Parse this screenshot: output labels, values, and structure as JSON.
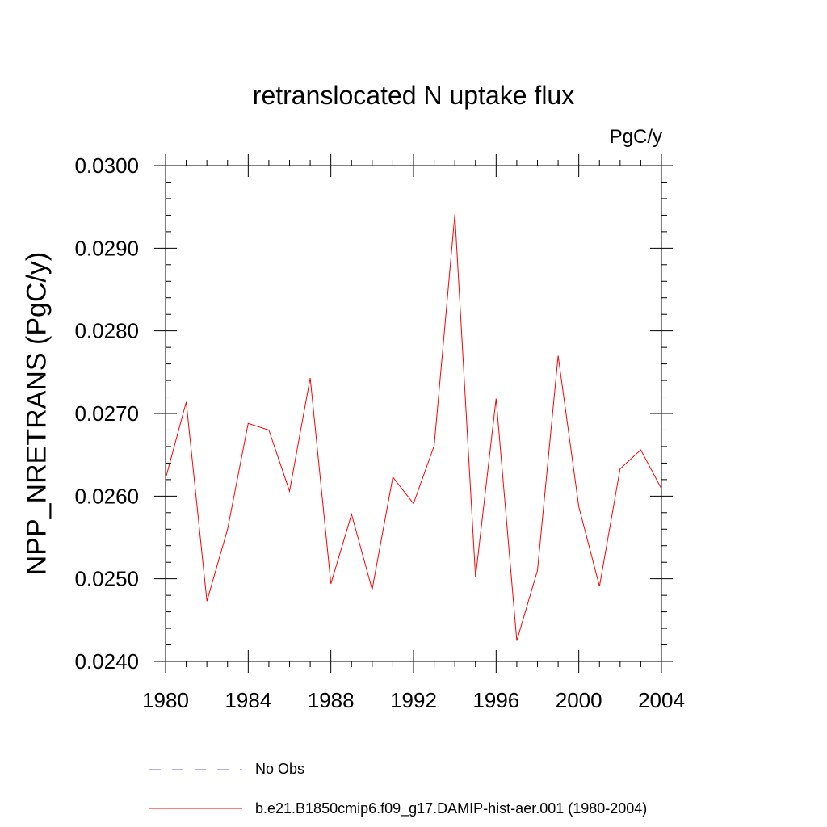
{
  "title": "retranslocated N uptake flux",
  "units_label": "PgC/y",
  "ylabel": "NPP_NRETRANS  (PgC/y)",
  "legend": [
    {
      "label": "No Obs",
      "color": "#6666cc",
      "style": "dashed"
    },
    {
      "label": "b.e21.B1850cmip6.f09_g17.DAMIP-hist-aer.001 (1980-2004)",
      "color": "#ff0000",
      "style": "solid"
    }
  ],
  "chart_data": {
    "type": "line",
    "title": "retranslocated N uptake flux",
    "ylabel": "NPP_NRETRANS  (PgC/y)",
    "xlabel": "",
    "xlim": [
      1980,
      2004
    ],
    "ylim": [
      0.024,
      0.03
    ],
    "xticks": [
      "1980",
      "1984",
      "1988",
      "1992",
      "1996",
      "2000",
      "2004"
    ],
    "yticks": [
      "0.0240",
      "0.0250",
      "0.0260",
      "0.0270",
      "0.0280",
      "0.0290",
      "0.0300"
    ],
    "x": [
      1980,
      1981,
      1982,
      1983,
      1984,
      1985,
      1986,
      1987,
      1988,
      1989,
      1990,
      1991,
      1992,
      1993,
      1994,
      1995,
      1996,
      1997,
      1998,
      1999,
      2000,
      2001,
      2002,
      2003,
      2004
    ],
    "series": [
      {
        "name": "b.e21.B1850cmip6.f09_g17.DAMIP-hist-aer.001 (1980-2004)",
        "color": "#ff0000",
        "values": [
          0.02621,
          0.02714,
          0.02473,
          0.0256,
          0.02688,
          0.0268,
          0.02606,
          0.02743,
          0.02494,
          0.02578,
          0.02487,
          0.02623,
          0.02591,
          0.02661,
          0.02941,
          0.02502,
          0.02718,
          0.02425,
          0.0251,
          0.0277,
          0.02587,
          0.02491,
          0.02633,
          0.02656,
          0.02609
        ]
      }
    ]
  }
}
